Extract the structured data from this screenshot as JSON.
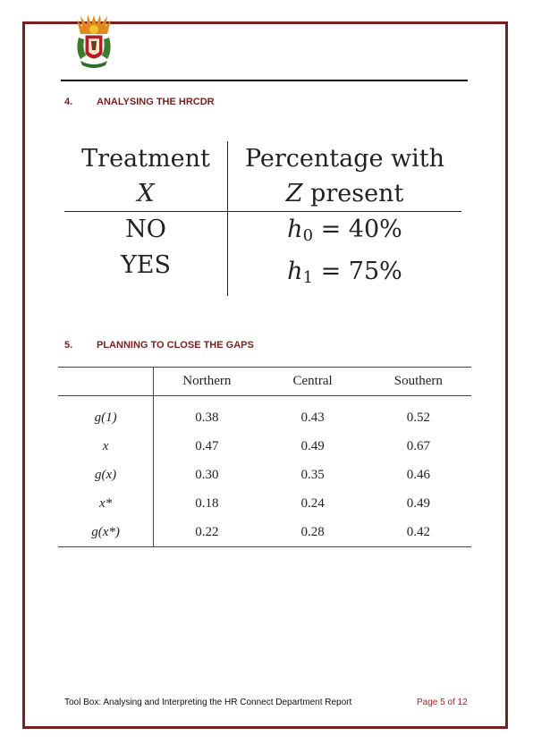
{
  "section4": {
    "number": "4.",
    "title": "ANALYSING THE HRCDR"
  },
  "treatment_table": {
    "header_col1_line1": "Treatment",
    "header_col1_line2": "X",
    "header_col2_line1": "Percentage with",
    "header_col2_line2_var": "Z",
    "header_col2_line2_rest": " present",
    "rows": [
      {
        "treatment": "NO",
        "var": "h",
        "sub": "0",
        "value": " = 40%"
      },
      {
        "treatment": "YES",
        "var": "h",
        "sub": "1",
        "value": " = 75%"
      }
    ]
  },
  "section5": {
    "number": "5.",
    "title": "PLANNING TO CLOSE THE GAPS"
  },
  "gap_table": {
    "columns": [
      "",
      "Northern",
      "Central",
      "Southern"
    ],
    "rows": [
      {
        "label": "g(1)",
        "values": [
          "0.38",
          "0.43",
          "0.52"
        ]
      },
      {
        "label": "x",
        "values": [
          "0.47",
          "0.49",
          "0.67"
        ]
      },
      {
        "label": "g(x)",
        "values": [
          "0.30",
          "0.35",
          "0.46"
        ]
      },
      {
        "label": "x*",
        "values": [
          "0.18",
          "0.24",
          "0.49"
        ]
      },
      {
        "label": "g(x*)",
        "values": [
          "0.22",
          "0.28",
          "0.42"
        ]
      }
    ]
  },
  "footer": {
    "left": "Tool Box: Analysing and Interpreting the HR Connect Department Report",
    "right": "Page 5 of 12"
  },
  "colors": {
    "border": "#7a1f1f",
    "heading": "#7a1f1f",
    "page_number": "#b11d1d"
  }
}
